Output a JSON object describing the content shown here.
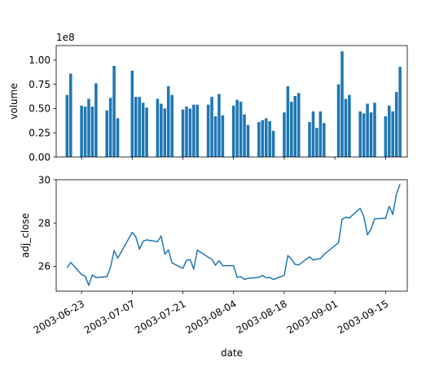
{
  "chart_data": [
    {
      "type": "bar",
      "ylabel": "volume",
      "y_offset_label": "1e8",
      "ylim": [
        0,
        1.15
      ],
      "yticks": [
        0.0,
        0.25,
        0.5,
        0.75,
        1.0
      ],
      "ytick_labels": [
        "0.00",
        "0.25",
        "0.50",
        "0.75",
        "1.00"
      ],
      "color": "#1f77b4",
      "x": [
        "2003-06-19",
        "2003-06-20",
        "2003-06-23",
        "2003-06-24",
        "2003-06-25",
        "2003-06-26",
        "2003-06-27",
        "2003-06-30",
        "2003-07-01",
        "2003-07-02",
        "2003-07-03",
        "2003-07-07",
        "2003-07-08",
        "2003-07-09",
        "2003-07-10",
        "2003-07-11",
        "2003-07-14",
        "2003-07-15",
        "2003-07-16",
        "2003-07-17",
        "2003-07-18",
        "2003-07-21",
        "2003-07-22",
        "2003-07-23",
        "2003-07-24",
        "2003-07-25",
        "2003-07-28",
        "2003-07-29",
        "2003-07-30",
        "2003-07-31",
        "2003-08-01",
        "2003-08-04",
        "2003-08-05",
        "2003-08-06",
        "2003-08-07",
        "2003-08-08",
        "2003-08-11",
        "2003-08-12",
        "2003-08-13",
        "2003-08-14",
        "2003-08-15",
        "2003-08-18",
        "2003-08-19",
        "2003-08-20",
        "2003-08-21",
        "2003-08-22",
        "2003-08-25",
        "2003-08-26",
        "2003-08-27",
        "2003-08-28",
        "2003-08-29",
        "2003-09-02",
        "2003-09-03",
        "2003-09-04",
        "2003-09-05",
        "2003-09-08",
        "2003-09-09",
        "2003-09-10",
        "2003-09-11",
        "2003-09-12",
        "2003-09-15",
        "2003-09-16",
        "2003-09-17",
        "2003-09-18",
        "2003-09-19"
      ],
      "values": [
        0.64,
        0.86,
        0.53,
        0.52,
        0.6,
        0.52,
        0.76,
        0.48,
        0.61,
        0.94,
        0.4,
        0.89,
        0.62,
        0.62,
        0.56,
        0.51,
        0.6,
        0.55,
        0.5,
        0.73,
        0.64,
        0.49,
        0.52,
        0.5,
        0.54,
        0.54,
        0.54,
        0.62,
        0.42,
        0.65,
        0.43,
        0.53,
        0.59,
        0.57,
        0.44,
        0.33,
        0.36,
        0.38,
        0.4,
        0.37,
        0.27,
        0.46,
        0.73,
        0.57,
        0.63,
        0.66,
        0.36,
        0.47,
        0.3,
        0.47,
        0.35,
        0.75,
        1.09,
        0.6,
        0.64,
        0.47,
        0.45,
        0.55,
        0.46,
        0.56,
        0.42,
        0.53,
        0.47,
        0.67,
        0.93
      ]
    },
    {
      "type": "line",
      "xlabel": "date",
      "ylabel": "adj_close",
      "ylim": [
        24.85,
        30.0
      ],
      "yticks": [
        26,
        28,
        30
      ],
      "ytick_labels": [
        "26",
        "28",
        "30"
      ],
      "color": "#1f77b4",
      "x": [
        "2003-06-19",
        "2003-06-20",
        "2003-06-23",
        "2003-06-24",
        "2003-06-25",
        "2003-06-26",
        "2003-06-27",
        "2003-06-30",
        "2003-07-01",
        "2003-07-02",
        "2003-07-03",
        "2003-07-07",
        "2003-07-08",
        "2003-07-09",
        "2003-07-10",
        "2003-07-11",
        "2003-07-14",
        "2003-07-15",
        "2003-07-16",
        "2003-07-17",
        "2003-07-18",
        "2003-07-21",
        "2003-07-22",
        "2003-07-23",
        "2003-07-24",
        "2003-07-25",
        "2003-07-28",
        "2003-07-29",
        "2003-07-30",
        "2003-07-31",
        "2003-08-01",
        "2003-08-04",
        "2003-08-05",
        "2003-08-06",
        "2003-08-07",
        "2003-08-08",
        "2003-08-11",
        "2003-08-12",
        "2003-08-13",
        "2003-08-14",
        "2003-08-15",
        "2003-08-18",
        "2003-08-19",
        "2003-08-20",
        "2003-08-21",
        "2003-08-22",
        "2003-08-25",
        "2003-08-26",
        "2003-08-27",
        "2003-08-28",
        "2003-08-29",
        "2003-09-02",
        "2003-09-03",
        "2003-09-04",
        "2003-09-05",
        "2003-09-08",
        "2003-09-09",
        "2003-09-10",
        "2003-09-11",
        "2003-09-12",
        "2003-09-15",
        "2003-09-16",
        "2003-09-17",
        "2003-09-18",
        "2003-09-19"
      ],
      "values": [
        25.93,
        26.18,
        25.62,
        25.55,
        25.12,
        25.6,
        25.48,
        25.52,
        25.95,
        26.73,
        26.37,
        27.57,
        27.36,
        26.79,
        27.16,
        27.22,
        27.14,
        27.4,
        26.56,
        26.76,
        26.16,
        25.9,
        26.28,
        26.31,
        25.87,
        26.75,
        26.42,
        26.32,
        26.05,
        26.26,
        26.03,
        26.03,
        25.49,
        25.52,
        25.4,
        25.44,
        25.49,
        25.58,
        25.47,
        25.48,
        25.39,
        25.58,
        26.5,
        26.33,
        26.09,
        26.06,
        26.44,
        26.29,
        26.33,
        26.36,
        26.55,
        27.09,
        28.17,
        28.27,
        28.23,
        28.68,
        28.29,
        27.45,
        27.73,
        28.2,
        28.22,
        28.77,
        28.4,
        29.33,
        29.8
      ]
    }
  ],
  "x_axis": {
    "ticks": [
      "2003-06-23",
      "2003-07-07",
      "2003-07-21",
      "2003-08-04",
      "2003-08-18",
      "2003-09-01",
      "2003-09-15"
    ],
    "tick_labels": [
      "2003-06-23",
      "2003-07-07",
      "2003-07-21",
      "2003-08-04",
      "2003-08-18",
      "2003-09-01",
      "2003-09-15"
    ],
    "start": "2003-06-16",
    "end": "2003-09-21"
  }
}
